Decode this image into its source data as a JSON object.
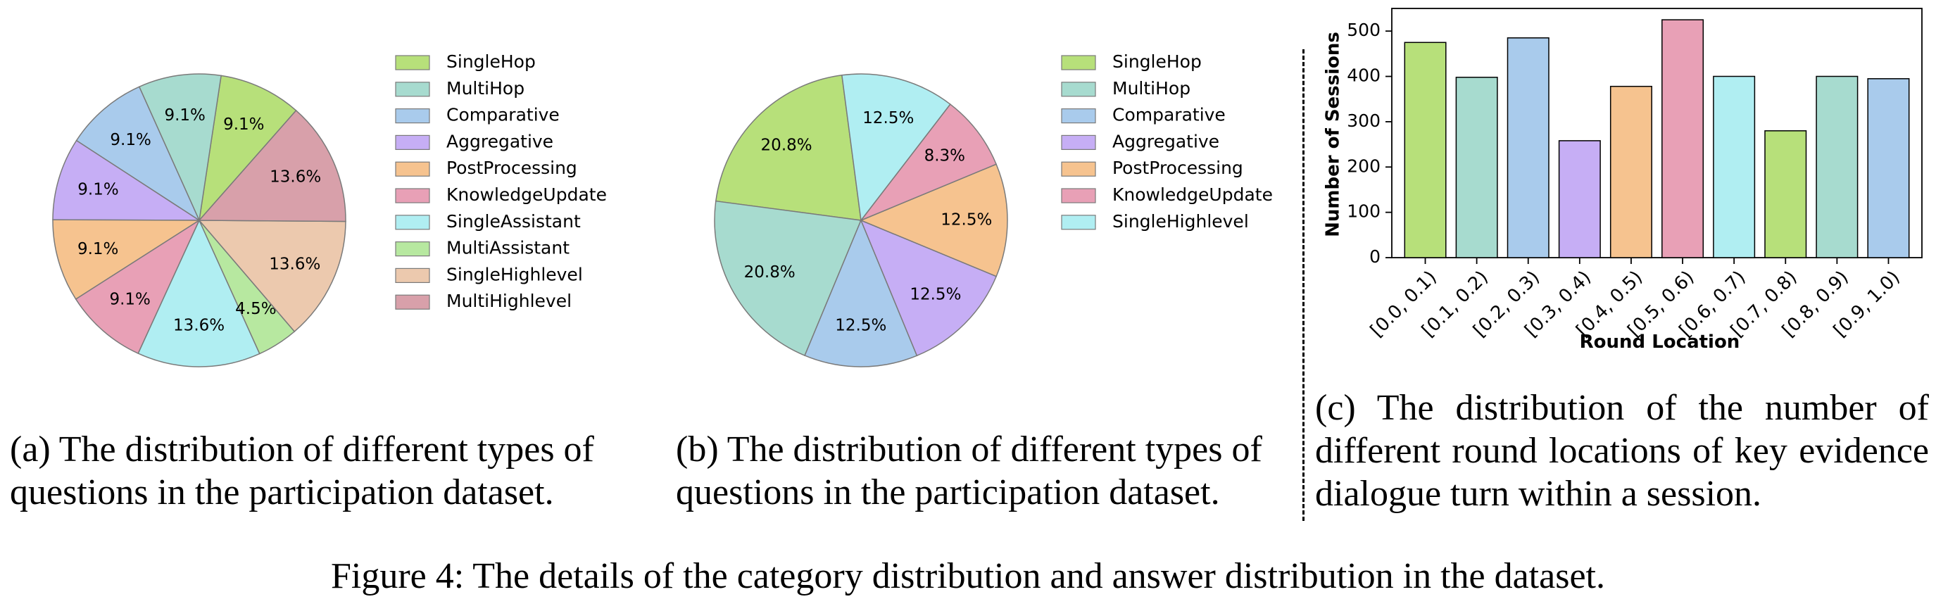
{
  "chart_data": [
    {
      "type": "pie",
      "legend": "right",
      "categories": [
        "SingleHop",
        "MultiHop",
        "Comparative",
        "Aggregative",
        "PostProcessing",
        "KnowledgeUpdate",
        "SingleAssistant",
        "MultiAssistant",
        "SingleHighlevel",
        "MultiHighlevel"
      ],
      "values": [
        9.1,
        9.1,
        9.1,
        9.1,
        9.1,
        9.1,
        13.6,
        4.5,
        13.6,
        13.6
      ],
      "labels": [
        "9.1%",
        "9.1%",
        "9.1%",
        "9.1%",
        "9.1%",
        "9.1%",
        "13.6%",
        "4.5%",
        "13.6%",
        "13.6%"
      ],
      "colors": [
        "#b7e07a",
        "#a7dbcf",
        "#a9cbec",
        "#c6aef5",
        "#f6c38f",
        "#e8a0b6",
        "#b0eef2",
        "#b7e8a0",
        "#ecc9ae",
        "#d8a0aa"
      ],
      "caption": "(a) The distribution of different types of questions in the participation dataset."
    },
    {
      "type": "pie",
      "legend": "right",
      "categories": [
        "SingleHop",
        "MultiHop",
        "Comparative",
        "Aggregative",
        "PostProcessing",
        "KnowledgeUpdate",
        "SingleHighlevel"
      ],
      "values": [
        20.8,
        20.8,
        12.5,
        12.5,
        12.5,
        8.3,
        12.5
      ],
      "labels": [
        "20.8%",
        "20.8%",
        "12.5%",
        "12.5%",
        "12.5%",
        "8.3%",
        "12.5%"
      ],
      "colors": [
        "#b7e07a",
        "#a7dbcf",
        "#a9cbec",
        "#c6aef5",
        "#f6c38f",
        "#e8a0b6",
        "#b0eef2"
      ],
      "caption": "(b) The distribution of different types of questions in the participation dataset."
    },
    {
      "type": "bar",
      "categories": [
        "[0.0, 0.1)",
        "[0.1, 0.2)",
        "[0.2, 0.3)",
        "[0.3, 0.4)",
        "[0.4, 0.5)",
        "[0.5, 0.6)",
        "[0.6, 0.7)",
        "[0.7, 0.8)",
        "[0.8, 0.9)",
        "[0.9, 1.0)"
      ],
      "values": [
        475,
        398,
        485,
        258,
        378,
        525,
        400,
        280,
        400,
        395
      ],
      "colors": [
        "#b7e07a",
        "#a7dbcf",
        "#a9cbec",
        "#c6aef5",
        "#f6c38f",
        "#e8a0b6",
        "#b0eef2",
        "#b7e07a",
        "#a7dbcf",
        "#a9cbec"
      ],
      "xlabel": "Round Location",
      "ylabel": "Number of Sessions",
      "ylim": [
        0,
        550
      ],
      "yticks": [
        0,
        100,
        200,
        300,
        400,
        500
      ],
      "grid": false,
      "caption": "(c) The distribution of the number of different round locations of key evidence dialogue turn within a session."
    }
  ],
  "figure_caption": "Figure 4: The details of the category distribution and answer distribution in the dataset."
}
